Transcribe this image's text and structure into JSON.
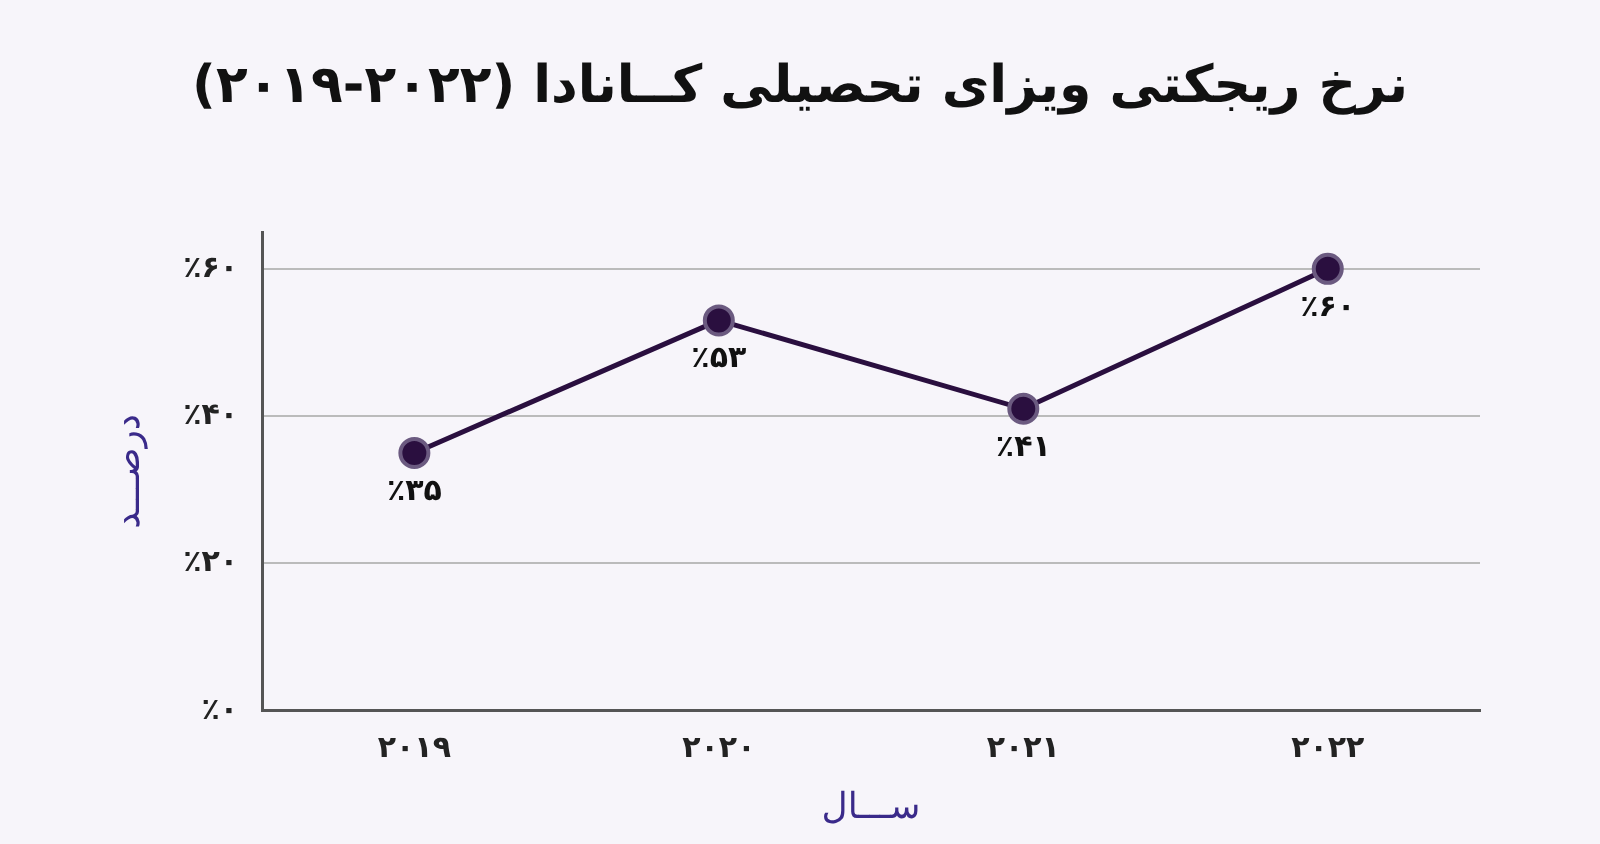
{
  "chart_data": {
    "type": "line",
    "title": "نرخ ریجکتی ویزای تحصیلی کــانادا (۲۰۲۲-۲۰۱۹)",
    "xlabel": "ســـال",
    "ylabel": "درصـــد",
    "categories": [
      "۲۰۱۹",
      "۲۰۲۰",
      "۲۰۲۱",
      "۲۰۲۲"
    ],
    "series": [
      {
        "color": "#2a0f3f",
        "values": [
          35,
          53,
          41,
          60
        ],
        "value_labels": [
          "٪۳۵",
          "٪۵۳",
          "٪۴۱",
          "٪۶۰"
        ]
      }
    ],
    "ylim": [
      0,
      65
    ],
    "yticks": [
      {
        "value": 0,
        "label": "٪۰"
      },
      {
        "value": 20,
        "label": "٪۲۰"
      },
      {
        "value": 40,
        "label": "٪۴۰"
      },
      {
        "value": 60,
        "label": "٪۶۰"
      }
    ],
    "grid": "y",
    "legend": false,
    "marker": "circle",
    "line_style": "solid"
  }
}
